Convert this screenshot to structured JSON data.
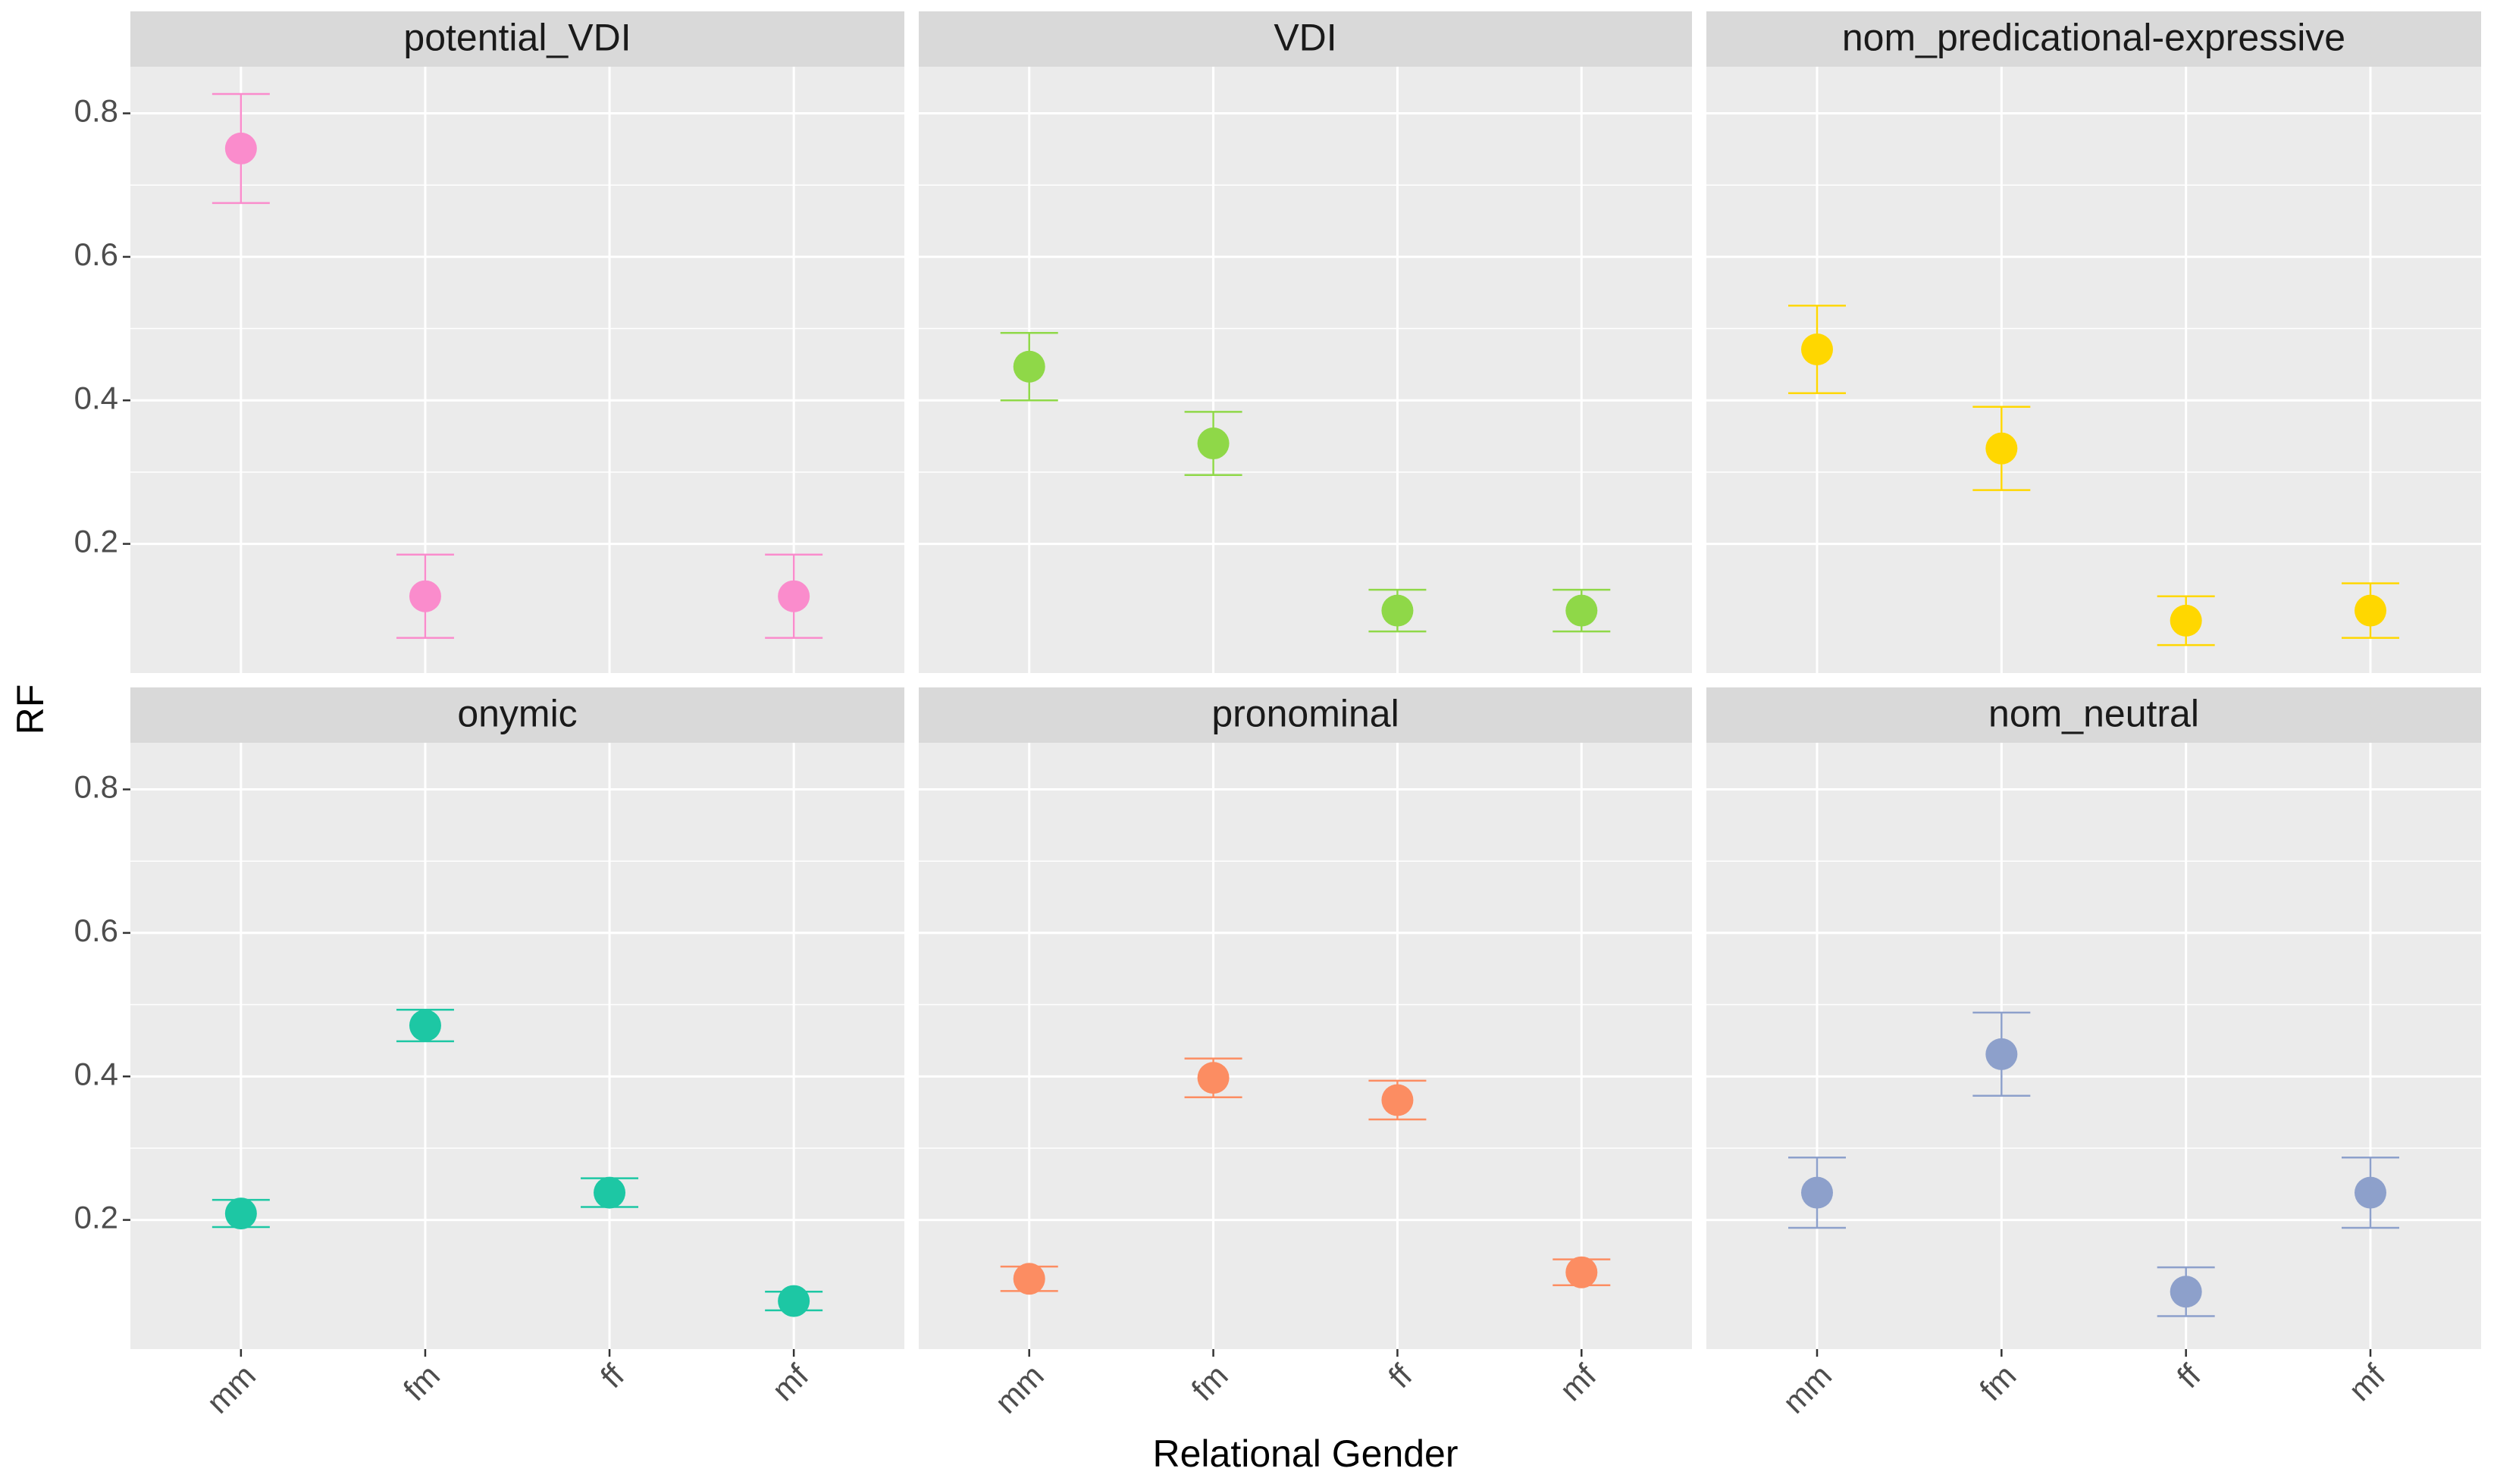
{
  "chart_data": {
    "type": "errorbar",
    "x_label": "Relational Gender",
    "y_label": "RF",
    "categories": [
      "mm",
      "fm",
      "ff",
      "mf"
    ],
    "ylim": [
      0.02,
      0.865
    ],
    "yticks": [
      0.2,
      0.4,
      0.6,
      0.8
    ],
    "grid": true,
    "panels": [
      {
        "title": "potential_VDI",
        "color": "#fa8ccc",
        "values": [
          0.751,
          0.127,
          null,
          0.127
        ],
        "errors": [
          0.076,
          0.058,
          null,
          0.058
        ]
      },
      {
        "title": "VDI",
        "color": "#8fd848",
        "values": [
          0.447,
          0.34,
          0.107,
          0.107
        ],
        "errors": [
          0.047,
          0.044,
          0.029,
          0.029
        ]
      },
      {
        "title": "nom_predicational-expressive",
        "color": "#ffd700",
        "values": [
          0.471,
          0.333,
          0.093,
          0.107
        ],
        "errors": [
          0.061,
          0.058,
          0.034,
          0.038
        ]
      },
      {
        "title": "onymic",
        "color": "#1dc7a4",
        "values": [
          0.209,
          0.471,
          0.238,
          0.087
        ],
        "errors": [
          0.019,
          0.022,
          0.02,
          0.013
        ]
      },
      {
        "title": "pronominal",
        "color": "#fc8d62",
        "values": [
          0.118,
          0.398,
          0.367,
          0.127
        ],
        "errors": [
          0.017,
          0.027,
          0.027,
          0.018
        ]
      },
      {
        "title": "nom_neutral",
        "color": "#8da0cb",
        "values": [
          0.238,
          0.431,
          0.1,
          0.238
        ],
        "errors": [
          0.049,
          0.058,
          0.034,
          0.049
        ]
      }
    ]
  }
}
